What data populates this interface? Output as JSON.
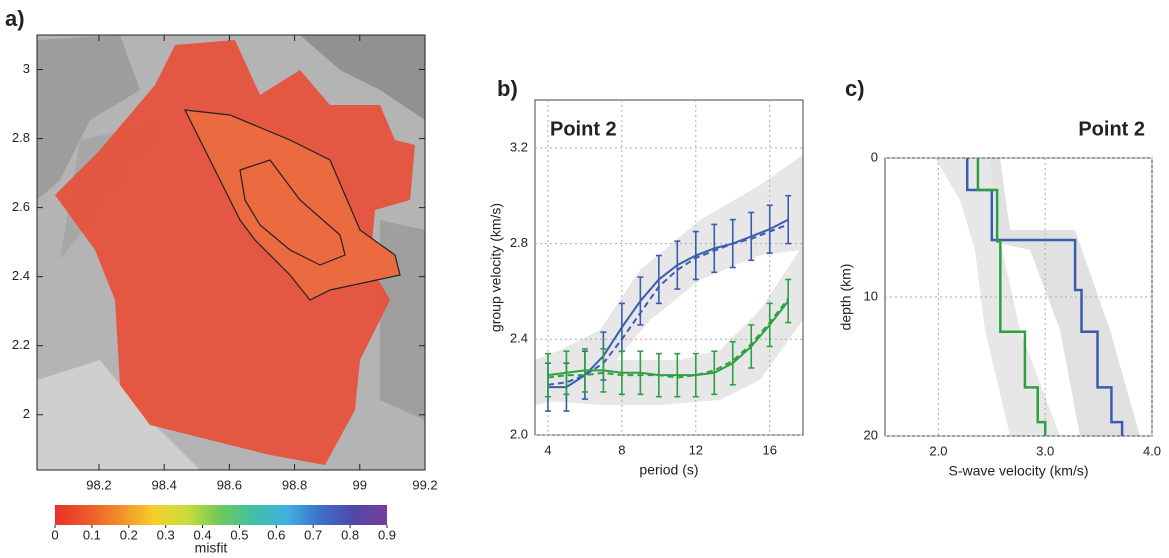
{
  "chart_data": [
    {
      "type": "map",
      "label": "a)",
      "xlim": [
        98.01,
        99.2
      ],
      "ylim": [
        1.84,
        3.1
      ],
      "xticks": [
        98.2,
        98.4,
        98.6,
        98.8,
        99,
        99.2
      ],
      "yticks": [
        2,
        2.2,
        2.4,
        2.6,
        2.8,
        3
      ],
      "colorbar": {
        "title": "misfit",
        "lim": [
          0,
          0.9
        ],
        "ticks": [
          0,
          0.1,
          0.2,
          0.3,
          0.4,
          0.5,
          0.6,
          0.7,
          0.8,
          0.9
        ],
        "colors": [
          "#e83028",
          "#ee5a2a",
          "#f2902c",
          "#f6d02c",
          "#c8dc3c",
          "#6cc85a",
          "#40c0a8",
          "#40b0e0",
          "#3c70c8",
          "#5048a8",
          "#7a3c9c"
        ]
      }
    },
    {
      "type": "line",
      "label": "b)",
      "title": "Point 2",
      "xlabel": "period (s)",
      "ylabel": "group velocity (km/s)",
      "xlim": [
        3.3,
        17.8
      ],
      "ylim": [
        2.0,
        3.4
      ],
      "xticks": [
        4,
        8,
        12,
        16
      ],
      "yticks": [
        {
          "value": 2.0,
          "label": "2.0"
        },
        {
          "value": 2.4,
          "label": "2.4"
        },
        {
          "value": 2.8,
          "label": "2.8"
        },
        {
          "value": 3.2,
          "label": "3.2"
        }
      ],
      "grid": true,
      "x": [
        4,
        5,
        6,
        7,
        8,
        9,
        10,
        11,
        12,
        13,
        14,
        15,
        16,
        17
      ],
      "series": [
        {
          "color": "#3a5cb0",
          "style": "solid",
          "values": [
            2.2,
            2.2,
            2.25,
            2.33,
            2.45,
            2.56,
            2.65,
            2.71,
            2.75,
            2.78,
            2.8,
            2.83,
            2.86,
            2.9
          ],
          "errors": [
            0.1,
            0.1,
            0.1,
            0.1,
            0.1,
            0.1,
            0.1,
            0.1,
            0.1,
            0.1,
            0.1,
            0.1,
            0.1,
            0.1
          ]
        },
        {
          "color": "#3a5cb0",
          "style": "dashed",
          "values": [
            2.21,
            2.22,
            2.25,
            2.3,
            2.4,
            2.51,
            2.62,
            2.69,
            2.74,
            2.77,
            2.8,
            2.82,
            2.85,
            2.88
          ]
        },
        {
          "color": "#2ea043",
          "style": "solid",
          "values": [
            2.25,
            2.26,
            2.27,
            2.27,
            2.26,
            2.26,
            2.25,
            2.25,
            2.25,
            2.26,
            2.3,
            2.37,
            2.46,
            2.56
          ],
          "errors": [
            0.09,
            0.09,
            0.09,
            0.09,
            0.09,
            0.09,
            0.09,
            0.09,
            0.09,
            0.09,
            0.09,
            0.09,
            0.09,
            0.09
          ]
        },
        {
          "color": "#2ea043",
          "style": "dashed",
          "values": [
            2.24,
            2.25,
            2.25,
            2.26,
            2.25,
            2.25,
            2.25,
            2.24,
            2.25,
            2.27,
            2.31,
            2.38,
            2.47,
            2.57
          ]
        }
      ]
    },
    {
      "type": "step",
      "label": "c)",
      "title": "Point 2",
      "xlabel": "S-wave velocity (km/s)",
      "ylabel": "depth (km)",
      "xlim": [
        1.5,
        4.0
      ],
      "ylim": [
        0,
        20
      ],
      "y_inverted": true,
      "xticks": [
        {
          "value": 2.0,
          "label": "2.0"
        },
        {
          "value": 3.0,
          "label": "3.0"
        },
        {
          "value": 4.0,
          "label": "4.0"
        }
      ],
      "yticks": [
        0,
        10,
        20
      ],
      "grid": true,
      "series": [
        {
          "color": "#3a5cb0",
          "depth": [
            0,
            2.3,
            2.3,
            5.9,
            5.9,
            9.5,
            9.5,
            12.5,
            12.5,
            16.5,
            16.5,
            19,
            19,
            20
          ],
          "values": [
            2.27,
            2.27,
            2.5,
            2.5,
            3.28,
            3.28,
            3.34,
            3.34,
            3.49,
            3.49,
            3.62,
            3.62,
            3.72,
            3.72
          ]
        },
        {
          "color": "#2ea043",
          "depth": [
            0,
            2.3,
            2.3,
            6,
            6,
            12.5,
            12.5,
            16.5,
            16.5,
            19,
            19,
            20
          ],
          "values": [
            2.37,
            2.37,
            2.55,
            2.55,
            2.58,
            2.58,
            2.81,
            2.81,
            2.93,
            2.93,
            3.0,
            3.0
          ]
        }
      ]
    }
  ]
}
